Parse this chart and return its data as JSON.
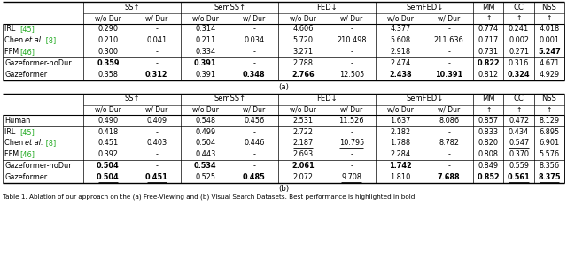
{
  "col_groups": [
    {
      "label": "SS↑",
      "cols": [
        "w/o Dur",
        "w/ Dur"
      ]
    },
    {
      "label": "SemSS↑",
      "cols": [
        "w/o Dur",
        "w/ Dur"
      ]
    },
    {
      "label": "FED↓",
      "cols": [
        "w/o Dur",
        "w/ Dur"
      ]
    },
    {
      "label": "SemFED↓",
      "cols": [
        "w/o Dur",
        "w/ Dur"
      ]
    },
    {
      "label": "MM",
      "cols": [
        "↑"
      ]
    },
    {
      "label": "CC",
      "cols": [
        "↑"
      ]
    },
    {
      "label": "NSS",
      "cols": [
        "↑"
      ]
    }
  ],
  "table_a": {
    "rows": [
      {
        "label": "IRL",
        "ref": "[45]",
        "italic_part": "",
        "chen": false,
        "vals": [
          "0.290",
          "-",
          "0.314",
          "-",
          "4.606",
          "-",
          "4.377",
          "-",
          "0.774",
          "0.241",
          "4.018"
        ]
      },
      {
        "label": "Chen",
        "ref": "[8]",
        "italic_part": "et al.",
        "chen": true,
        "vals": [
          "0.210",
          "0.041",
          "0.211",
          "0.034",
          "5.720",
          "210.498",
          "5.608",
          "211.636",
          "0.717",
          "0.002",
          "0.001"
        ]
      },
      {
        "label": "FFM",
        "ref": "[46]",
        "italic_part": "",
        "chen": false,
        "vals": [
          "0.300",
          "-",
          "0.334",
          "-",
          "3.271",
          "-",
          "2.918",
          "-",
          "0.731",
          "0.271",
          "5.247"
        ]
      },
      {
        "label": "Gazeformer-noDur",
        "ref": "",
        "italic_part": "",
        "chen": false,
        "vals": [
          "0.359",
          "-",
          "0.391",
          "-",
          "2.788",
          "-",
          "2.474",
          "-",
          "0.822",
          "0.316",
          "4.671"
        ]
      },
      {
        "label": "Gazeformer",
        "ref": "",
        "italic_part": "",
        "chen": false,
        "vals": [
          "0.358",
          "0.312",
          "0.391",
          "0.348",
          "2.766",
          "12.505",
          "2.438",
          "10.391",
          "0.812",
          "0.324",
          "4.929"
        ]
      }
    ],
    "bold_cells": {
      "3_0": 1,
      "3_2": 1,
      "3_8": 1,
      "4_1": 1,
      "4_3": 1,
      "4_4": 1,
      "4_6": 1,
      "4_7": 1,
      "4_9": 1,
      "2_10": 1
    },
    "underline_cells": {},
    "sep_before": [
      3
    ]
  },
  "table_b": {
    "rows": [
      {
        "label": "Human",
        "ref": "",
        "italic_part": "",
        "chen": false,
        "vals": [
          "0.490",
          "0.409",
          "0.548",
          "0.456",
          "2.531",
          "11.526",
          "1.637",
          "8.086",
          "0.857",
          "0.472",
          "8.129"
        ]
      },
      {
        "label": "IRL",
        "ref": "[45]",
        "italic_part": "",
        "chen": false,
        "vals": [
          "0.418",
          "-",
          "0.499",
          "-",
          "2.722",
          "-",
          "2.182",
          "-",
          "0.833",
          "0.434",
          "6.895"
        ]
      },
      {
        "label": "Chen",
        "ref": "[8]",
        "italic_part": "et al.",
        "chen": true,
        "vals": [
          "0.451",
          "0.403",
          "0.504",
          "0.446",
          "2.187",
          "10.795",
          "1.788",
          "8.782",
          "0.820",
          "0.547",
          "6.901"
        ]
      },
      {
        "label": "FFM",
        "ref": "[46]",
        "italic_part": "",
        "chen": false,
        "vals": [
          "0.392",
          "-",
          "0.443",
          "-",
          "2.693",
          "-",
          "2.284",
          "-",
          "0.808",
          "0.370",
          "5.576"
        ]
      },
      {
        "label": "Gazeformer-noDur",
        "ref": "",
        "italic_part": "",
        "chen": false,
        "vals": [
          "0.504",
          "-",
          "0.534",
          "-",
          "2.061",
          "-",
          "1.742",
          "-",
          "0.849",
          "0.559",
          "8.356"
        ]
      },
      {
        "label": "Gazeformer",
        "ref": "",
        "italic_part": "",
        "chen": false,
        "vals": [
          "0.504",
          "0.451",
          "0.525",
          "0.485",
          "2.072",
          "9.708",
          "1.810",
          "7.688",
          "0.852",
          "0.561",
          "8.375"
        ]
      }
    ],
    "bold_cells": {
      "4_0": 1,
      "4_2": 1,
      "4_4": 1,
      "4_6": 1,
      "5_0": 1,
      "5_1": 1,
      "5_3": 1,
      "5_7": 1,
      "5_8": 1,
      "5_9": 1,
      "5_10": 1
    },
    "underline_cells": {
      "2_4": 1,
      "2_5": 1,
      "2_9": 1,
      "5_0": 1,
      "5_1": 1,
      "5_5": 1,
      "5_9": 1,
      "5_10": 1
    },
    "sep_before": [
      1,
      4
    ]
  },
  "caption_text": "Table 1. Ablation of our approach on the (a) Free-Viewing and (b) Visual Search Datasets. Best performance is highlighted in bold."
}
